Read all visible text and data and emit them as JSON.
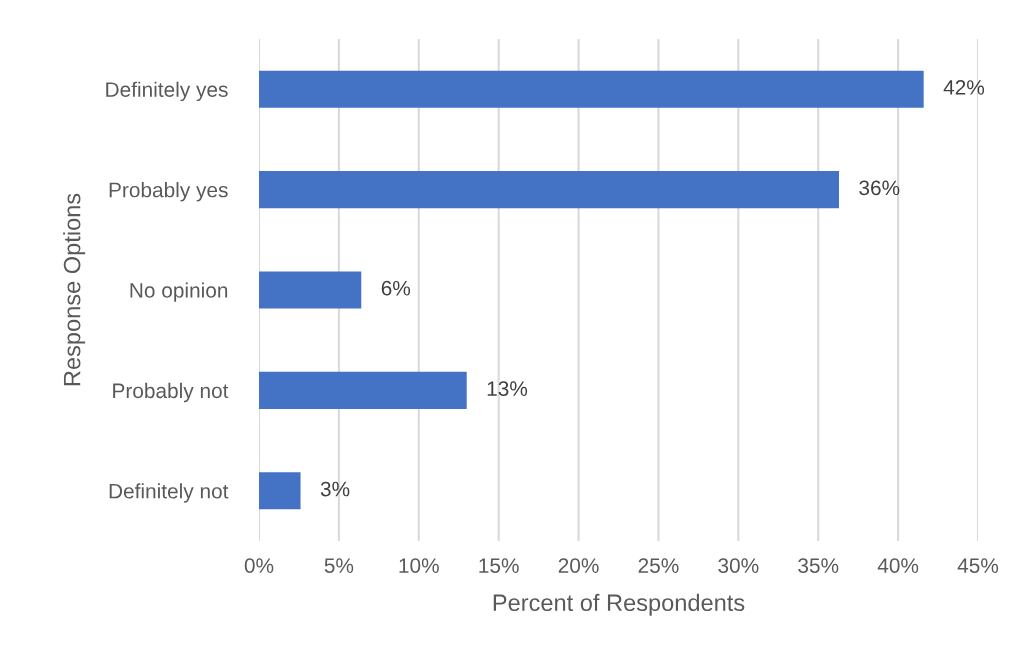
{
  "chart_data": {
    "type": "bar",
    "orientation": "horizontal",
    "categories": [
      "Definitely yes",
      "Probably yes",
      "No opinion",
      "Probably not",
      "Definitely not"
    ],
    "values": [
      41.6,
      36.3,
      6.4,
      13.0,
      2.6
    ],
    "value_labels": [
      "42%",
      "36%",
      "6%",
      "13%",
      "3%"
    ],
    "color": "#4472c4",
    "xlabel": "Percent of Respondents",
    "ylabel": "Response Options",
    "xlim": [
      0,
      45
    ],
    "xticks": [
      {
        "value": 0,
        "label": "0%"
      },
      {
        "value": 5,
        "label": "5%"
      },
      {
        "value": 10,
        "label": "10%"
      },
      {
        "value": 15,
        "label": "15%"
      },
      {
        "value": 20,
        "label": "20%"
      },
      {
        "value": 25,
        "label": "25%"
      },
      {
        "value": 30,
        "label": "30%"
      },
      {
        "value": 35,
        "label": "35%"
      },
      {
        "value": 40,
        "label": "40%"
      },
      {
        "value": 45,
        "label": "45%"
      }
    ],
    "grid": "x"
  }
}
